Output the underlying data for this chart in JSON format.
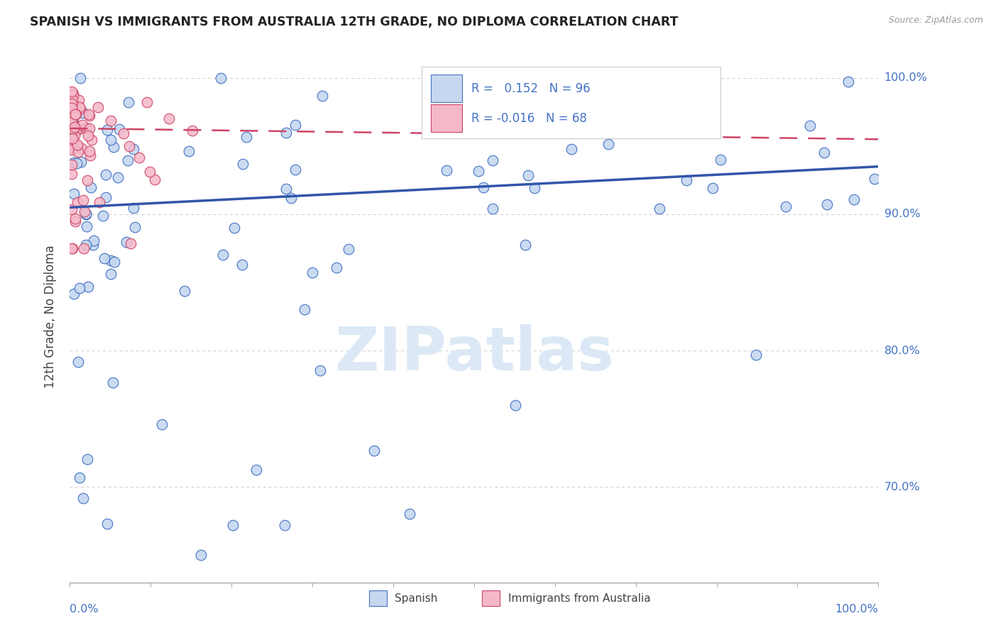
{
  "title": "SPANISH VS IMMIGRANTS FROM AUSTRALIA 12TH GRADE, NO DIPLOMA CORRELATION CHART",
  "source": "Source: ZipAtlas.com",
  "ylabel": "12th Grade, No Diploma",
  "legend_label1": "Spanish",
  "legend_label2": "Immigrants from Australia",
  "R1": 0.152,
  "N1": 96,
  "R2": -0.016,
  "N2": 68,
  "color_blue_fill": "#c5d8f0",
  "color_blue_edge": "#4472c4",
  "color_pink_fill": "#f5b8c8",
  "color_pink_edge": "#cc4466",
  "color_blue_line": "#3355aa",
  "color_pink_line": "#cc4466",
  "color_axis_text": "#4472c4",
  "color_grid": "#cccccc",
  "watermark_color": "#dce8f5",
  "ytick_vals": [
    0.7,
    0.8,
    0.9,
    1.0
  ],
  "ytick_labels": [
    "70.0%",
    "80.0%",
    "90.0%",
    "100.0%"
  ],
  "xlim": [
    0.0,
    1.0
  ],
  "ylim": [
    0.63,
    1.02
  ],
  "blue_trend_x0": 0.0,
  "blue_trend_y0": 0.905,
  "blue_trend_x1": 1.0,
  "blue_trend_y1": 0.935,
  "pink_trend_x0": 0.0,
  "pink_trend_y0": 0.963,
  "pink_trend_x1": 1.0,
  "pink_trend_y1": 0.955
}
